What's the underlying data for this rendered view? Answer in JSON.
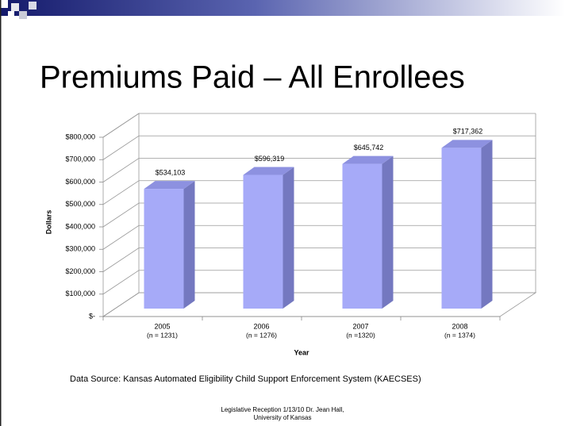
{
  "slide": {
    "title": "Premiums Paid – All Enrollees",
    "source": "Data Source: Kansas Automated Eligibility Child Support Enforcement System (KAECSES)",
    "footer": [
      "Legislative Reception 1/13/10  Dr. Jean Hall,",
      "University of Kansas"
    ]
  },
  "chart_data": {
    "type": "bar3d",
    "x_label": "Year",
    "y_label": "Dollars",
    "categories": [
      "2005",
      "2006",
      "2007",
      "2008"
    ],
    "category_counts": [
      "(n = 1231)",
      "(n = 1276)",
      "(n =1320)",
      "(n = 1374)"
    ],
    "values": [
      534103,
      596319,
      645742,
      717362
    ],
    "value_labels": [
      "$534,103",
      "$596,319",
      "$645,742",
      "$717,362"
    ],
    "color": "#a6aaf8",
    "ylim": [
      0,
      800000
    ],
    "yticks": [
      {
        "value": 0,
        "label": "$-"
      },
      {
        "value": 100000,
        "label": "$100,000"
      },
      {
        "value": 200000,
        "label": "$200,000"
      },
      {
        "value": 300000,
        "label": "$300,000"
      },
      {
        "value": 400000,
        "label": "$400,000"
      },
      {
        "value": 500000,
        "label": "$500,000"
      },
      {
        "value": 600000,
        "label": "$600,000"
      },
      {
        "value": 700000,
        "label": "$700,000"
      },
      {
        "value": 800000,
        "label": "$800,000"
      }
    ],
    "grid": true
  }
}
